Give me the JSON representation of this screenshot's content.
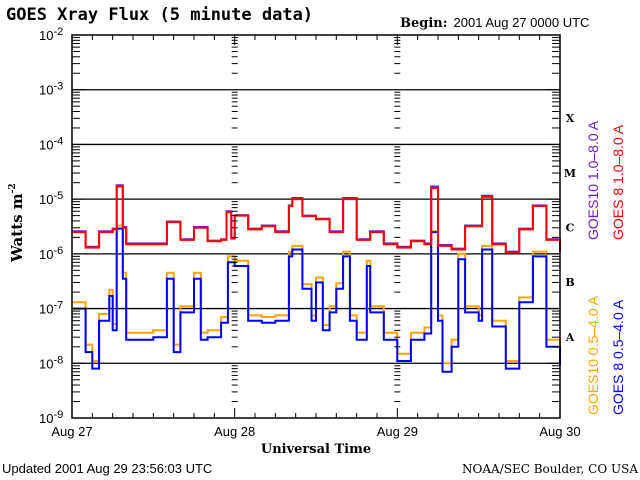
{
  "header": {
    "title": "GOES Xray Flux (5 minute data)",
    "begin_label": "Begin:",
    "begin_value": "2001 Aug 27 0000 UTC"
  },
  "footer": {
    "updated": "Updated 2001 Aug 29 23:56:03 UTC",
    "source": "NOAA/SEC Boulder, CO USA"
  },
  "chart_data": {
    "type": "line",
    "title": "GOES Xray Flux (5 minute data)",
    "xlabel": "Universal Time",
    "ylabel": "Watts m",
    "ylabel_superscript": "-2",
    "yscale": "log",
    "ylim": [
      1e-09,
      0.01
    ],
    "y_ticks": [
      1e-09,
      1e-08,
      1e-07,
      1e-06,
      1e-05,
      0.0001,
      0.001,
      0.01
    ],
    "xlim": [
      "2001-08-27T00:00",
      "2001-08-30T00:00"
    ],
    "x_ticks": [
      "2001-08-27T00:00",
      "2001-08-28T00:00",
      "2001-08-29T00:00",
      "2001-08-30T00:00"
    ],
    "x_tick_labels": [
      "Aug 27",
      "Aug 28",
      "Aug 29",
      "Aug 30"
    ],
    "grid": "horizontal lines at each decade",
    "flare_classes": [
      {
        "label": "X",
        "level": 0.0001
      },
      {
        "label": "M",
        "level": 1e-05
      },
      {
        "label": "C",
        "level": 1e-06
      },
      {
        "label": "B",
        "level": 1e-07
      },
      {
        "label": "A",
        "level": 1e-08
      }
    ],
    "legend_placement": "right, vertical",
    "series": [
      {
        "name": "GOES10 0.5-4.0 A",
        "color": "#ffa500",
        "points": [
          [
            "2001-08-27T00:00",
            1.3e-07
          ],
          [
            "2001-08-27T02:00",
            2.2e-08
          ],
          [
            "2001-08-27T03:00",
            1.1e-08
          ],
          [
            "2001-08-27T04:00",
            8e-08
          ],
          [
            "2001-08-27T05:30",
            2.2e-07
          ],
          [
            "2001-08-27T06:00",
            5.2e-08
          ],
          [
            "2001-08-27T06:36",
            3.3e-06
          ],
          [
            "2001-08-27T07:30",
            4.5e-07
          ],
          [
            "2001-08-27T08:00",
            3.6e-08
          ],
          [
            "2001-08-27T10:00",
            3.6e-08
          ],
          [
            "2001-08-27T12:00",
            4e-08
          ],
          [
            "2001-08-27T14:00",
            4.5e-07
          ],
          [
            "2001-08-27T15:00",
            2.2e-08
          ],
          [
            "2001-08-27T16:00",
            1.1e-07
          ],
          [
            "2001-08-27T18:00",
            4.5e-07
          ],
          [
            "2001-08-27T19:00",
            3.6e-08
          ],
          [
            "2001-08-27T20:00",
            4e-08
          ],
          [
            "2001-08-27T22:00",
            7e-08
          ],
          [
            "2001-08-27T23:00",
            9e-07
          ],
          [
            "2001-08-28T00:00",
            7.5e-07
          ],
          [
            "2001-08-28T02:00",
            7.5e-08
          ],
          [
            "2001-08-28T04:00",
            7e-08
          ],
          [
            "2001-08-28T06:00",
            7.5e-08
          ],
          [
            "2001-08-28T08:00",
            1.1e-06
          ],
          [
            "2001-08-28T08:30",
            1.4e-06
          ],
          [
            "2001-08-28T10:00",
            2.8e-07
          ],
          [
            "2001-08-28T11:20",
            7.5e-08
          ],
          [
            "2001-08-28T12:00",
            3.7e-07
          ],
          [
            "2001-08-28T13:00",
            5e-08
          ],
          [
            "2001-08-28T14:00",
            1.1e-07
          ],
          [
            "2001-08-28T15:00",
            2.9e-07
          ],
          [
            "2001-08-28T16:00",
            1.1e-06
          ],
          [
            "2001-08-28T17:00",
            7.5e-08
          ],
          [
            "2001-08-28T18:00",
            3.6e-08
          ],
          [
            "2001-08-28T19:30",
            7.5e-07
          ],
          [
            "2001-08-28T20:00",
            1.1e-07
          ],
          [
            "2001-08-28T22:00",
            3.6e-08
          ],
          [
            "2001-08-29T00:00",
            1.5e-08
          ],
          [
            "2001-08-29T02:00",
            3.6e-08
          ],
          [
            "2001-08-29T04:00",
            4.5e-08
          ],
          [
            "2001-08-29T05:00",
            2.6e-06
          ],
          [
            "2001-08-29T06:00",
            7.5e-08
          ],
          [
            "2001-08-29T06:40",
            1e-08
          ],
          [
            "2001-08-29T08:00",
            2.7e-08
          ],
          [
            "2001-08-29T09:00",
            1e-06
          ],
          [
            "2001-08-29T10:00",
            1.1e-07
          ],
          [
            "2001-08-29T12:00",
            7.5e-08
          ],
          [
            "2001-08-29T12:30",
            1.4e-06
          ],
          [
            "2001-08-29T14:00",
            6e-08
          ],
          [
            "2001-08-29T16:00",
            1.1e-08
          ],
          [
            "2001-08-29T18:00",
            1.6e-07
          ],
          [
            "2001-08-29T20:00",
            1.1e-06
          ],
          [
            "2001-08-29T22:00",
            2.7e-08
          ],
          [
            "2001-08-30T00:00",
            1.3e-08
          ]
        ]
      },
      {
        "name": "GOES 8 0.5-4.0 A",
        "color": "#0000ff",
        "points": [
          [
            "2001-08-27T00:00",
            1e-07
          ],
          [
            "2001-08-27T02:00",
            1.6e-08
          ],
          [
            "2001-08-27T03:00",
            8e-09
          ],
          [
            "2001-08-27T04:00",
            6e-08
          ],
          [
            "2001-08-27T05:30",
            1.7e-07
          ],
          [
            "2001-08-27T06:00",
            4e-08
          ],
          [
            "2001-08-27T06:36",
            2.9e-06
          ],
          [
            "2001-08-27T07:30",
            3.5e-07
          ],
          [
            "2001-08-27T08:00",
            2.7e-08
          ],
          [
            "2001-08-27T10:00",
            2.7e-08
          ],
          [
            "2001-08-27T12:00",
            3e-08
          ],
          [
            "2001-08-27T14:00",
            3.5e-07
          ],
          [
            "2001-08-27T15:00",
            1.6e-08
          ],
          [
            "2001-08-27T16:00",
            8.5e-08
          ],
          [
            "2001-08-27T18:00",
            3.5e-07
          ],
          [
            "2001-08-27T19:00",
            2.7e-08
          ],
          [
            "2001-08-27T20:00",
            3e-08
          ],
          [
            "2001-08-27T22:00",
            5.5e-08
          ],
          [
            "2001-08-27T23:00",
            7e-07
          ],
          [
            "2001-08-28T00:00",
            6e-07
          ],
          [
            "2001-08-28T02:00",
            6e-08
          ],
          [
            "2001-08-28T04:00",
            5.5e-08
          ],
          [
            "2001-08-28T06:00",
            6e-08
          ],
          [
            "2001-08-28T08:00",
            9e-07
          ],
          [
            "2001-08-28T08:30",
            1.2e-06
          ],
          [
            "2001-08-28T10:00",
            2.3e-07
          ],
          [
            "2001-08-28T11:20",
            6e-08
          ],
          [
            "2001-08-28T12:00",
            3e-07
          ],
          [
            "2001-08-28T13:00",
            4e-08
          ],
          [
            "2001-08-28T14:00",
            8.5e-08
          ],
          [
            "2001-08-28T15:00",
            2.3e-07
          ],
          [
            "2001-08-28T16:00",
            9e-07
          ],
          [
            "2001-08-28T17:00",
            6e-08
          ],
          [
            "2001-08-28T18:00",
            2.7e-08
          ],
          [
            "2001-08-28T19:30",
            6e-07
          ],
          [
            "2001-08-28T20:00",
            8.5e-08
          ],
          [
            "2001-08-28T22:00",
            2.7e-08
          ],
          [
            "2001-08-29T00:00",
            1.1e-08
          ],
          [
            "2001-08-29T02:00",
            2.7e-08
          ],
          [
            "2001-08-29T04:00",
            3.5e-08
          ],
          [
            "2001-08-29T05:00",
            2.5e-06
          ],
          [
            "2001-08-29T06:00",
            6e-08
          ],
          [
            "2001-08-29T06:40",
            7e-09
          ],
          [
            "2001-08-29T08:00",
            2e-08
          ],
          [
            "2001-08-29T09:00",
            8e-07
          ],
          [
            "2001-08-29T10:00",
            8.5e-08
          ],
          [
            "2001-08-29T12:00",
            6e-08
          ],
          [
            "2001-08-29T12:30",
            1.2e-06
          ],
          [
            "2001-08-29T14:00",
            4.7e-08
          ],
          [
            "2001-08-29T16:00",
            8e-09
          ],
          [
            "2001-08-29T18:00",
            1.3e-07
          ],
          [
            "2001-08-29T20:00",
            9e-07
          ],
          [
            "2001-08-29T22:00",
            2e-08
          ],
          [
            "2001-08-30T00:00",
            9e-09
          ]
        ]
      },
      {
        "name": "GOES10 1.0-8.0 A",
        "color": "#7020c0",
        "points": [
          [
            "2001-08-27T00:00",
            2.6e-06
          ],
          [
            "2001-08-27T02:00",
            1.35e-06
          ],
          [
            "2001-08-27T04:00",
            2.6e-06
          ],
          [
            "2001-08-27T06:00",
            2.9e-06
          ],
          [
            "2001-08-27T06:36",
            1.8e-05
          ],
          [
            "2001-08-27T07:30",
            3.1e-06
          ],
          [
            "2001-08-27T08:00",
            1.55e-06
          ],
          [
            "2001-08-27T10:00",
            1.55e-06
          ],
          [
            "2001-08-27T12:00",
            1.55e-06
          ],
          [
            "2001-08-27T14:00",
            3.9e-06
          ],
          [
            "2001-08-27T16:00",
            1.85e-06
          ],
          [
            "2001-08-27T18:00",
            3.1e-06
          ],
          [
            "2001-08-27T20:00",
            1.75e-06
          ],
          [
            "2001-08-27T22:00",
            1.85e-06
          ],
          [
            "2001-08-27T22:48",
            6e-06
          ],
          [
            "2001-08-27T23:30",
            1.95e-06
          ],
          [
            "2001-08-28T00:00",
            5.1e-06
          ],
          [
            "2001-08-28T02:00",
            2.9e-06
          ],
          [
            "2001-08-28T04:00",
            3.3e-06
          ],
          [
            "2001-08-28T06:00",
            2.6e-06
          ],
          [
            "2001-08-28T08:00",
            7.7e-06
          ],
          [
            "2001-08-28T08:30",
            1.05e-05
          ],
          [
            "2001-08-28T10:00",
            5e-06
          ],
          [
            "2001-08-28T12:00",
            4.4e-06
          ],
          [
            "2001-08-28T14:00",
            2.6e-06
          ],
          [
            "2001-08-28T16:00",
            1.05e-05
          ],
          [
            "2001-08-28T18:00",
            1.85e-06
          ],
          [
            "2001-08-28T20:00",
            2.6e-06
          ],
          [
            "2001-08-28T22:00",
            1.55e-06
          ],
          [
            "2001-08-29T00:00",
            1.35e-06
          ],
          [
            "2001-08-29T02:00",
            1.75e-06
          ],
          [
            "2001-08-29T04:00",
            1.55e-06
          ],
          [
            "2001-08-29T05:00",
            1.7e-05
          ],
          [
            "2001-08-29T06:00",
            1.45e-06
          ],
          [
            "2001-08-29T08:00",
            1.25e-06
          ],
          [
            "2001-08-29T10:00",
            3.3e-06
          ],
          [
            "2001-08-29T12:00",
            3.3e-06
          ],
          [
            "2001-08-29T12:30",
            1.15e-05
          ],
          [
            "2001-08-29T14:00",
            1.55e-06
          ],
          [
            "2001-08-29T16:00",
            1.1e-06
          ],
          [
            "2001-08-29T18:00",
            2.9e-06
          ],
          [
            "2001-08-29T20:00",
            7.7e-06
          ],
          [
            "2001-08-29T22:00",
            1.85e-06
          ],
          [
            "2001-08-30T00:00",
            1.15e-06
          ]
        ]
      },
      {
        "name": "GOES 8 1.0-8.0 A",
        "color": "#ff0000",
        "points": [
          [
            "2001-08-27T00:00",
            2.5e-06
          ],
          [
            "2001-08-27T02:00",
            1.3e-06
          ],
          [
            "2001-08-27T04:00",
            2.5e-06
          ],
          [
            "2001-08-27T06:00",
            2.8e-06
          ],
          [
            "2001-08-27T06:36",
            1.7e-05
          ],
          [
            "2001-08-27T07:30",
            3e-06
          ],
          [
            "2001-08-27T08:00",
            1.5e-06
          ],
          [
            "2001-08-27T10:00",
            1.5e-06
          ],
          [
            "2001-08-27T12:00",
            1.5e-06
          ],
          [
            "2001-08-27T14:00",
            3.8e-06
          ],
          [
            "2001-08-27T16:00",
            1.8e-06
          ],
          [
            "2001-08-27T18:00",
            3e-06
          ],
          [
            "2001-08-27T20:00",
            1.7e-06
          ],
          [
            "2001-08-27T22:00",
            1.8e-06
          ],
          [
            "2001-08-27T22:48",
            5.8e-06
          ],
          [
            "2001-08-27T23:30",
            1.9e-06
          ],
          [
            "2001-08-28T00:00",
            5e-06
          ],
          [
            "2001-08-28T02:00",
            2.8e-06
          ],
          [
            "2001-08-28T04:00",
            3.2e-06
          ],
          [
            "2001-08-28T06:00",
            2.5e-06
          ],
          [
            "2001-08-28T08:00",
            7.5e-06
          ],
          [
            "2001-08-28T08:30",
            1e-05
          ],
          [
            "2001-08-28T10:00",
            4.9e-06
          ],
          [
            "2001-08-28T12:00",
            4.3e-06
          ],
          [
            "2001-08-28T14:00",
            2.5e-06
          ],
          [
            "2001-08-28T16:00",
            1e-05
          ],
          [
            "2001-08-28T18:00",
            1.8e-06
          ],
          [
            "2001-08-28T20:00",
            2.5e-06
          ],
          [
            "2001-08-28T22:00",
            1.5e-06
          ],
          [
            "2001-08-29T00:00",
            1.3e-06
          ],
          [
            "2001-08-29T02:00",
            1.7e-06
          ],
          [
            "2001-08-29T04:00",
            1.5e-06
          ],
          [
            "2001-08-29T05:00",
            1.6e-05
          ],
          [
            "2001-08-29T06:00",
            1.4e-06
          ],
          [
            "2001-08-29T08:00",
            1.2e-06
          ],
          [
            "2001-08-29T10:00",
            3.2e-06
          ],
          [
            "2001-08-29T12:00",
            3.2e-06
          ],
          [
            "2001-08-29T12:30",
            1.1e-05
          ],
          [
            "2001-08-29T14:00",
            1.5e-06
          ],
          [
            "2001-08-29T16:00",
            1.05e-06
          ],
          [
            "2001-08-29T18:00",
            2.8e-06
          ],
          [
            "2001-08-29T20:00",
            7.5e-06
          ],
          [
            "2001-08-29T22:00",
            1.8e-06
          ],
          [
            "2001-08-30T00:00",
            1.1e-06
          ]
        ]
      }
    ]
  }
}
